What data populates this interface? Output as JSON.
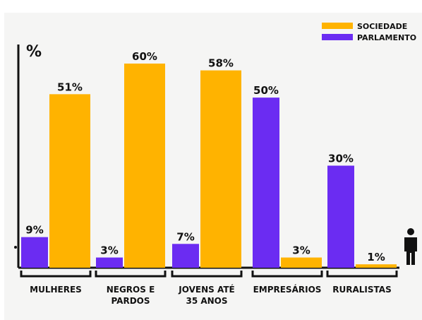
{
  "colors": {
    "sociedade": "#ffb300",
    "parlamento": "#6b2cf2",
    "ink": "#111111"
  },
  "chart_data": {
    "type": "bar",
    "title": "",
    "xlabel": "",
    "ylabel": "%",
    "ylim": [
      0,
      70
    ],
    "grid": false,
    "legend": "top-right",
    "categories": [
      [
        "MULHERES"
      ],
      [
        "NEGROS E",
        "PARDOS"
      ],
      [
        "JOVENS ATÉ",
        "35 ANOS"
      ],
      [
        "EMPRESÁRIOS"
      ],
      [
        "RURALISTAS"
      ]
    ],
    "series": [
      {
        "name": "PARLAMENTO",
        "values": [
          9,
          3,
          7,
          50,
          30
        ],
        "labels": [
          "9%",
          "3%",
          "7%",
          "50%",
          "30%"
        ]
      },
      {
        "name": "SOCIEDADE",
        "values": [
          51,
          60,
          58,
          3,
          1
        ],
        "labels": [
          "51%",
          "60%",
          "58%",
          "3%",
          "1%"
        ]
      }
    ],
    "legend_entries": [
      {
        "name": "SOCIEDADE",
        "color": "#ffb300"
      },
      {
        "name": "PARLAMENTO",
        "color": "#6b2cf2"
      }
    ],
    "icon": "person-icon"
  }
}
